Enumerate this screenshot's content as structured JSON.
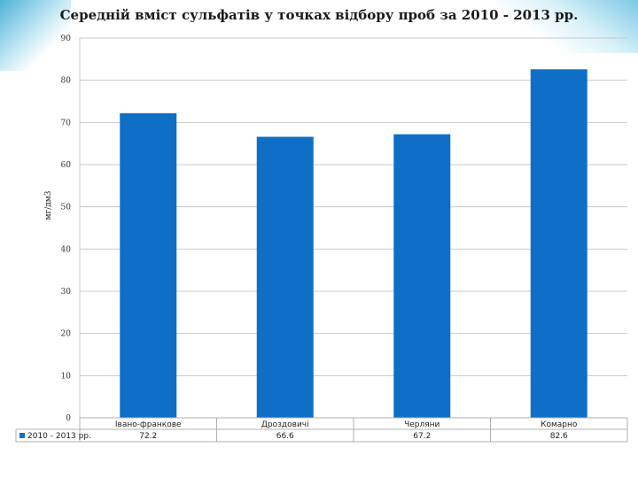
{
  "chart_data": {
    "type": "bar",
    "title": "Середній вміст сульфатів у точках відбору проб за 2010 - 2013 рр.",
    "ylabel": "мг/дм3",
    "xlabel": "",
    "categories": [
      "Івано-франкове",
      "Дроздовичі",
      "Черляни",
      "Комарно"
    ],
    "series": [
      {
        "name": "2010 - 2013 рр.",
        "values": [
          72.2,
          66.6,
          67.2,
          82.6
        ]
      }
    ],
    "ylim": [
      0,
      90
    ],
    "yticks": [
      0,
      10,
      20,
      30,
      40,
      50,
      60,
      70,
      80,
      90
    ],
    "grid": true,
    "legend_position": "data-table-left",
    "bar_color": "#0f6fc6"
  }
}
